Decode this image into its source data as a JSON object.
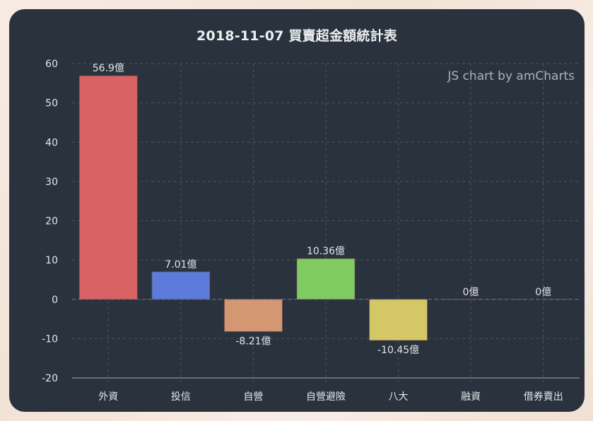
{
  "page": {
    "title": "2018-11-07 買賣超金額統計表",
    "credit": "JS chart by amCharts"
  },
  "colors": {
    "background": "#29323d",
    "grid": "#4a5561",
    "text": "#e3e6e9"
  },
  "chart_data": {
    "type": "bar",
    "title": "2018-11-07 買賣超金額統計表",
    "xlabel": "",
    "ylabel": "",
    "ylim": [
      -20,
      60
    ],
    "yticks": [
      60,
      50,
      40,
      30,
      20,
      10,
      0,
      -10,
      -20
    ],
    "grid": true,
    "value_suffix": "億",
    "categories": [
      "外資",
      "投信",
      "自營",
      "自營避險",
      "八大",
      "融資",
      "借券賣出"
    ],
    "values": [
      56.9,
      7.01,
      -8.21,
      10.36,
      -10.45,
      0,
      0
    ],
    "labels": [
      "56.9億",
      "7.01億",
      "-8.21億",
      "10.36億",
      "-10.45億",
      "0億",
      "0億"
    ],
    "bar_colors": [
      "#d96364",
      "#5c7bdb",
      "#d39872",
      "#80cc63",
      "#d4c866",
      "#d96364",
      "#d96364"
    ]
  }
}
